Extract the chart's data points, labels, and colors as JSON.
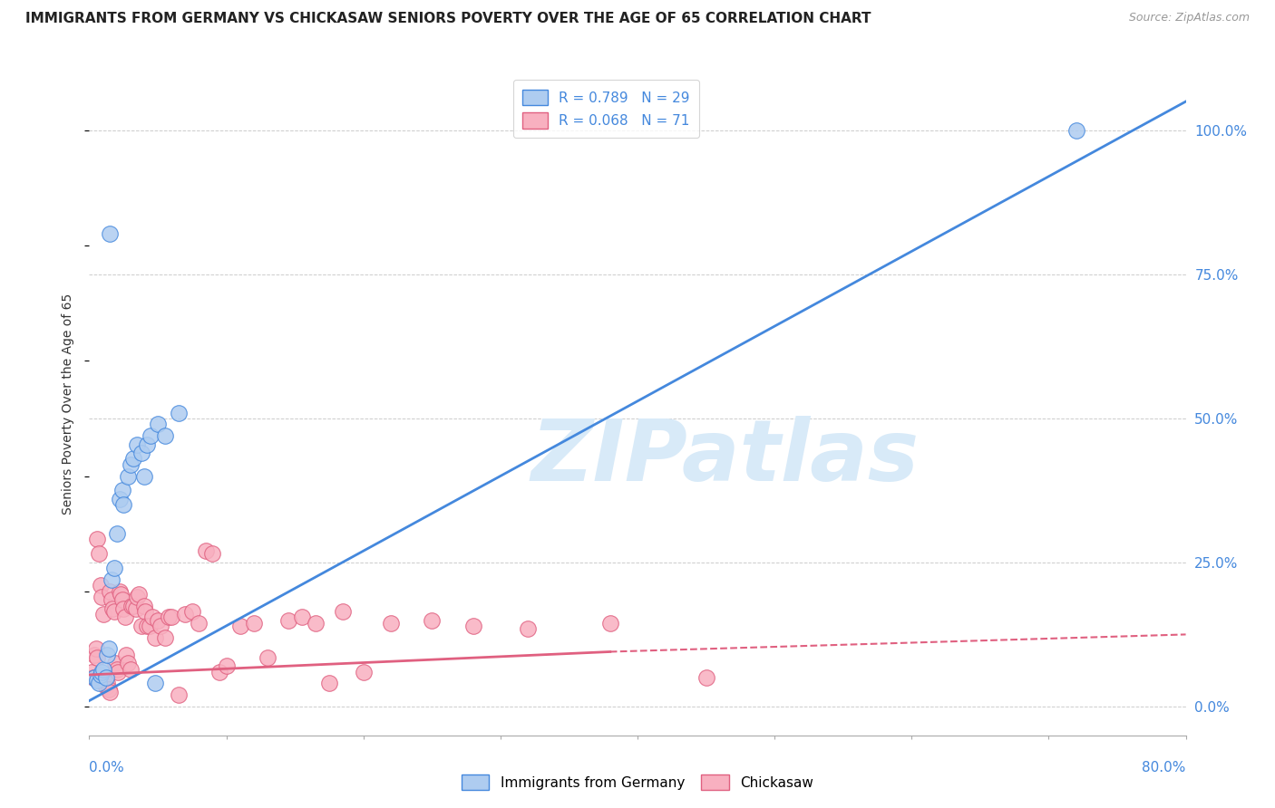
{
  "title": "IMMIGRANTS FROM GERMANY VS CHICKASAW SENIORS POVERTY OVER THE AGE OF 65 CORRELATION CHART",
  "source_text": "Source: ZipAtlas.com",
  "ylabel": "Seniors Poverty Over the Age of 65",
  "legend_labels": [
    "Immigrants from Germany",
    "Chickasaw"
  ],
  "r_blue": 0.789,
  "n_blue": 29,
  "r_pink": 0.068,
  "n_pink": 71,
  "blue_color": "#aeccf0",
  "blue_line_color": "#4488dd",
  "pink_color": "#f8b0c0",
  "pink_line_color": "#e06080",
  "background_color": "#ffffff",
  "watermark": "ZIPatlas",
  "watermark_color": "#d8eaf8",
  "blue_scatter_x": [
    0.004,
    0.006,
    0.007,
    0.008,
    0.009,
    0.01,
    0.012,
    0.013,
    0.014,
    0.015,
    0.016,
    0.018,
    0.02,
    0.022,
    0.024,
    0.025,
    0.028,
    0.03,
    0.032,
    0.035,
    0.038,
    0.04,
    0.042,
    0.045,
    0.048,
    0.05,
    0.055,
    0.065,
    0.72
  ],
  "blue_scatter_y": [
    0.05,
    0.045,
    0.04,
    0.055,
    0.06,
    0.065,
    0.05,
    0.09,
    0.1,
    0.82,
    0.22,
    0.24,
    0.3,
    0.36,
    0.375,
    0.35,
    0.4,
    0.42,
    0.43,
    0.455,
    0.44,
    0.4,
    0.455,
    0.47,
    0.04,
    0.49,
    0.47,
    0.51,
    1.0
  ],
  "pink_scatter_x": [
    0.002,
    0.003,
    0.004,
    0.005,
    0.006,
    0.006,
    0.007,
    0.008,
    0.009,
    0.01,
    0.01,
    0.011,
    0.012,
    0.013,
    0.014,
    0.015,
    0.015,
    0.016,
    0.017,
    0.018,
    0.019,
    0.02,
    0.021,
    0.022,
    0.023,
    0.024,
    0.025,
    0.026,
    0.027,
    0.028,
    0.03,
    0.031,
    0.032,
    0.034,
    0.035,
    0.036,
    0.038,
    0.04,
    0.041,
    0.042,
    0.044,
    0.046,
    0.048,
    0.05,
    0.052,
    0.055,
    0.058,
    0.06,
    0.065,
    0.07,
    0.075,
    0.08,
    0.085,
    0.09,
    0.095,
    0.1,
    0.11,
    0.12,
    0.13,
    0.145,
    0.155,
    0.165,
    0.175,
    0.185,
    0.2,
    0.22,
    0.25,
    0.28,
    0.32,
    0.38,
    0.45
  ],
  "pink_scatter_y": [
    0.06,
    0.05,
    0.09,
    0.1,
    0.085,
    0.29,
    0.265,
    0.21,
    0.19,
    0.16,
    0.05,
    0.04,
    0.035,
    0.04,
    0.03,
    0.025,
    0.2,
    0.185,
    0.17,
    0.165,
    0.075,
    0.065,
    0.06,
    0.2,
    0.195,
    0.185,
    0.17,
    0.155,
    0.09,
    0.075,
    0.065,
    0.175,
    0.175,
    0.17,
    0.19,
    0.195,
    0.14,
    0.175,
    0.165,
    0.14,
    0.14,
    0.155,
    0.12,
    0.15,
    0.14,
    0.12,
    0.155,
    0.155,
    0.02,
    0.16,
    0.165,
    0.145,
    0.27,
    0.265,
    0.06,
    0.07,
    0.14,
    0.145,
    0.085,
    0.15,
    0.155,
    0.145,
    0.04,
    0.165,
    0.06,
    0.145,
    0.15,
    0.14,
    0.135,
    0.145,
    0.05
  ],
  "xmin": 0.0,
  "xmax": 0.8,
  "ymin": -0.05,
  "ymax": 1.1,
  "right_yticks": [
    0.0,
    0.25,
    0.5,
    0.75,
    1.0
  ],
  "right_yticklabels": [
    "0.0%",
    "25.0%",
    "50.0%",
    "75.0%",
    "100.0%"
  ],
  "blue_line_x0": 0.0,
  "blue_line_y0": 0.01,
  "blue_line_x1": 0.8,
  "blue_line_y1": 1.05,
  "pink_line_x0": 0.0,
  "pink_line_y0": 0.055,
  "pink_line_x1_solid": 0.38,
  "pink_line_y1_solid": 0.095,
  "pink_line_x1_dashed": 0.8,
  "pink_line_y1_dashed": 0.125,
  "grid_color": "#cccccc"
}
